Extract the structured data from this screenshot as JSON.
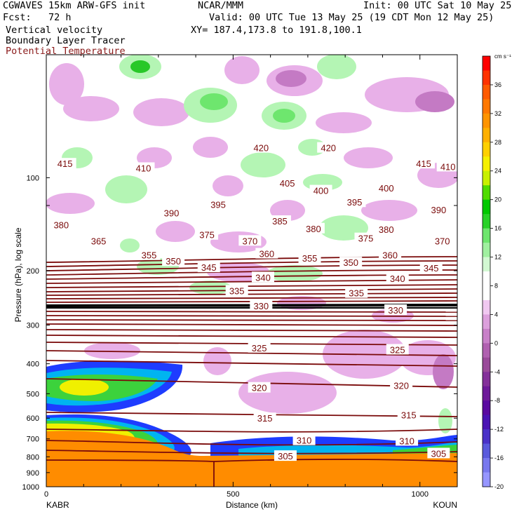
{
  "header": {
    "model_title": "CGWAVES 15km ARW-GFS init",
    "forecast": "Fcst:   72 h",
    "field_1": "Vertical velocity",
    "field_2": "Boundary Layer Tracer",
    "field_3": "Potential Temperature",
    "center": "NCAR/MMM",
    "init": "Init: 00 UTC Sat 10 May 25",
    "valid": "Valid: 00 UTC Tue 13 May 25 (19 CDT Mon 12 May 25)",
    "xy": "XY= 187.4,173.8 to 191.8,100.1"
  },
  "colors": {
    "theta_contour": "#7a0a0a",
    "neg_light": "#e8b0e8",
    "neg_mid": "#c47ac4",
    "neg_dark": "#9a3a9a",
    "pos_light": "#b4f5b4",
    "pos_mid": "#6ee66e",
    "pos_dark": "#28c828",
    "tracer_orange": "#ff8c00",
    "tracer_blue": "#1e3cff",
    "tracer_cyan": "#00b4f0",
    "tracer_green": "#3cd23c",
    "tracer_yellow": "#f0f000"
  },
  "chart_data": {
    "type": "contour",
    "xlabel": "Distance (km)",
    "ylabel": "Pressure (hPa), log scale",
    "xlim": [
      0,
      1100
    ],
    "x_ticks": [
      "0",
      "500",
      "1000"
    ],
    "y_scale": "log",
    "ylim": [
      1000,
      40
    ],
    "y_ticks": [
      "100",
      "200",
      "300",
      "400",
      "500",
      "600",
      "700",
      "800",
      "900",
      "1000"
    ],
    "endpoint_left": "KABR",
    "endpoint_right": "KOUN",
    "colorbar": {
      "unit": "cm s⁻¹",
      "labels": [
        "36",
        "32",
        "28",
        "24",
        "20",
        "16",
        "12",
        "8",
        "4",
        "0",
        "-4",
        "-8",
        "-12",
        "-16",
        "-20"
      ],
      "colors": [
        "#ff0000",
        "#ff3200",
        "#ff5a00",
        "#ff7800",
        "#ff9400",
        "#ffb000",
        "#ffd000",
        "#f5f000",
        "#c8f000",
        "#50dc00",
        "#00c800",
        "#28d228",
        "#6ee66e",
        "#a0f0a0",
        "#d2f8d2",
        "#ffffff",
        "#ffffff",
        "#f0c8f0",
        "#dca0dc",
        "#c880c8",
        "#b060b0",
        "#9a4a9a",
        "#84309a",
        "#6e1a9a",
        "#5a0aa0",
        "#4a14b4",
        "#4a32c8",
        "#5a5adc",
        "#7878ee",
        "#9696ff"
      ]
    },
    "theta_labels": [
      {
        "x": 50,
        "p": 90,
        "t": "415"
      },
      {
        "x": 260,
        "p": 93,
        "t": "410"
      },
      {
        "x": 575,
        "p": 80,
        "t": "420"
      },
      {
        "x": 755,
        "p": 80,
        "t": "420"
      },
      {
        "x": 645,
        "p": 104,
        "t": "405"
      },
      {
        "x": 735,
        "p": 110,
        "t": "400"
      },
      {
        "x": 910,
        "p": 108,
        "t": "400"
      },
      {
        "x": 1010,
        "p": 90,
        "t": "415"
      },
      {
        "x": 1075,
        "p": 92,
        "t": "410"
      },
      {
        "x": 460,
        "p": 122,
        "t": "395"
      },
      {
        "x": 825,
        "p": 120,
        "t": "395"
      },
      {
        "x": 1050,
        "p": 127,
        "t": "390"
      },
      {
        "x": 40,
        "p": 142,
        "t": "380"
      },
      {
        "x": 335,
        "p": 130,
        "t": "390"
      },
      {
        "x": 625,
        "p": 138,
        "t": "385"
      },
      {
        "x": 715,
        "p": 146,
        "t": "380"
      },
      {
        "x": 910,
        "p": 147,
        "t": "380"
      },
      {
        "x": 430,
        "p": 153,
        "t": "375"
      },
      {
        "x": 855,
        "p": 157,
        "t": "375"
      },
      {
        "x": 140,
        "p": 160,
        "t": "365"
      },
      {
        "x": 545,
        "p": 160,
        "t": "370"
      },
      {
        "x": 1060,
        "p": 160,
        "t": "370"
      },
      {
        "x": 275,
        "p": 178,
        "t": "355"
      },
      {
        "x": 340,
        "p": 186,
        "t": "350"
      },
      {
        "x": 590,
        "p": 176,
        "t": "360"
      },
      {
        "x": 705,
        "p": 182,
        "t": "355"
      },
      {
        "x": 815,
        "p": 188,
        "t": "350"
      },
      {
        "x": 920,
        "p": 178,
        "t": "360"
      },
      {
        "x": 435,
        "p": 195,
        "t": "345"
      },
      {
        "x": 1030,
        "p": 196,
        "t": "345"
      },
      {
        "x": 580,
        "p": 210,
        "t": "340"
      },
      {
        "x": 940,
        "p": 212,
        "t": "340"
      },
      {
        "x": 510,
        "p": 232,
        "t": "335"
      },
      {
        "x": 830,
        "p": 236,
        "t": "335"
      },
      {
        "x": 575,
        "p": 260,
        "t": "330"
      },
      {
        "x": 935,
        "p": 268,
        "t": "330"
      },
      {
        "x": 570,
        "p": 355,
        "t": "325"
      },
      {
        "x": 940,
        "p": 360,
        "t": "325"
      },
      {
        "x": 570,
        "p": 478,
        "t": "320"
      },
      {
        "x": 950,
        "p": 470,
        "t": "320"
      },
      {
        "x": 585,
        "p": 600,
        "t": "315"
      },
      {
        "x": 970,
        "p": 585,
        "t": "315"
      },
      {
        "x": 690,
        "p": 707,
        "t": "310"
      },
      {
        "x": 965,
        "p": 710,
        "t": "310"
      },
      {
        "x": 640,
        "p": 795,
        "t": "305"
      },
      {
        "x": 1050,
        "p": 780,
        "t": "305"
      }
    ]
  }
}
